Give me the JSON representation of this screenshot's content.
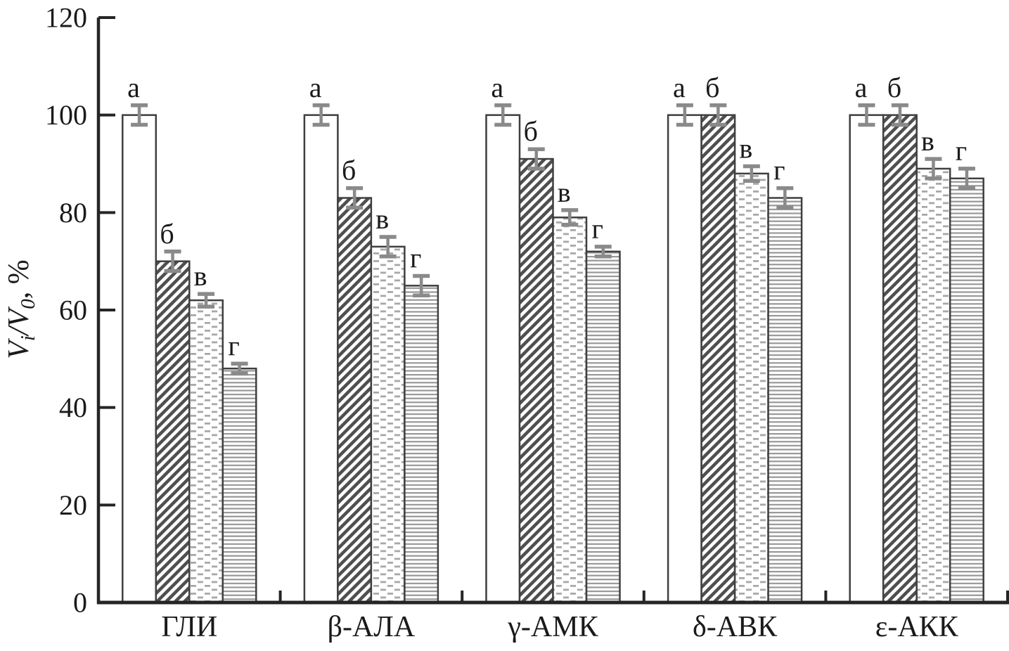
{
  "figure": {
    "background": "#ffffff",
    "description": "Grouped bar chart of residual enzyme activity with error bars"
  },
  "chart_data": {
    "type": "bar",
    "title": "",
    "xlabel": "",
    "ylabel": "Vi/V0, %",
    "ylabel_parts": {
      "numerator": "V",
      "numerator_sub": "i",
      "divider": "/",
      "denominator": "V",
      "denominator_sub": "0",
      "suffix": ", %"
    },
    "categories": [
      "ГЛИ",
      "β-АЛА",
      "γ-АМК",
      "δ-АВК",
      "ε-АКК"
    ],
    "yticks": [
      0,
      20,
      40,
      60,
      80,
      100,
      120
    ],
    "ytick_labels": [
      "0",
      "20",
      "40",
      "60",
      "80",
      "100",
      "120"
    ],
    "ylim": [
      0,
      120
    ],
    "grid": false,
    "legend_position": "none",
    "bar_letter_labels": [
      "а",
      "б",
      "в",
      "г"
    ],
    "series": [
      {
        "name": "а",
        "pattern": "plain-white",
        "values": [
          100,
          100,
          100,
          100,
          100
        ],
        "errors": [
          2,
          2,
          2,
          2,
          2
        ]
      },
      {
        "name": "б",
        "pattern": "diagonal-hatch",
        "values": [
          70,
          83,
          91,
          100,
          100
        ],
        "errors": [
          2,
          2,
          2,
          2,
          2
        ]
      },
      {
        "name": "в",
        "pattern": "staggered-dashes",
        "values": [
          62,
          73,
          79,
          88,
          89
        ],
        "errors": [
          1.3,
          2,
          1.5,
          1.5,
          2
        ]
      },
      {
        "name": "г",
        "pattern": "horizontal-lines",
        "values": [
          48,
          65,
          72,
          83,
          87
        ],
        "errors": [
          1,
          2,
          1,
          2,
          2
        ]
      }
    ],
    "colors": {
      "axis": "#252525",
      "bar_outline": "#3f3f3f",
      "error_bar": "#8a8a8a",
      "hatch_line": "#4f4f4f",
      "dash_fill": "#a8a8a8",
      "hline_fill": "#989898",
      "text": "#1a1a1a",
      "background": "#ffffff"
    }
  }
}
